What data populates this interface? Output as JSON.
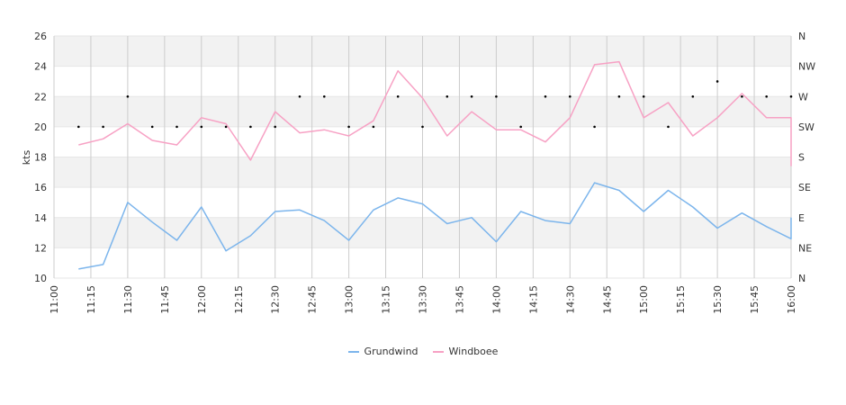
{
  "chart_data": {
    "type": "line",
    "ylabel": "kts",
    "ylim": [
      10,
      26
    ],
    "yticks": [
      "10",
      "12",
      "14",
      "16",
      "18",
      "20",
      "22",
      "24",
      "26"
    ],
    "y2ticks": [
      "N",
      "NE",
      "E",
      "SE",
      "S",
      "SW",
      "W",
      "NW",
      "N"
    ],
    "xticks": [
      "11:00",
      "11:15",
      "11:30",
      "11:45",
      "12:00",
      "12:15",
      "12:30",
      "12:45",
      "13:00",
      "13:15",
      "13:30",
      "13:45",
      "14:00",
      "14:15",
      "14:30",
      "14:45",
      "15:00",
      "15:15",
      "15:30",
      "15:45",
      "16:00"
    ],
    "x": [
      "11:10",
      "11:20",
      "11:30",
      "11:40",
      "11:50",
      "12:00",
      "12:10",
      "12:20",
      "12:30",
      "12:40",
      "12:50",
      "13:00",
      "13:10",
      "13:20",
      "13:30",
      "13:40",
      "13:50",
      "14:00",
      "14:10",
      "14:20",
      "14:30",
      "14:40",
      "14:50",
      "15:00",
      "15:10",
      "15:20",
      "15:30",
      "15:40",
      "15:50",
      "16:00"
    ],
    "series": [
      {
        "name": "Grundwind",
        "color": "#7cb5ec",
        "values": [
          10.6,
          10.9,
          15.0,
          13.7,
          12.5,
          14.7,
          11.8,
          12.8,
          14.4,
          14.5,
          13.8,
          12.5,
          14.5,
          15.3,
          14.9,
          13.6,
          14.0,
          12.4,
          14.4,
          13.8,
          13.6,
          16.3,
          15.8,
          14.4,
          15.8,
          14.7,
          13.3,
          14.3,
          13.4,
          12.6
        ]
      },
      {
        "name": "Windboee",
        "color": "#f7a1c4",
        "values": [
          18.8,
          19.2,
          20.2,
          19.1,
          18.8,
          20.6,
          20.2,
          17.8,
          21.0,
          19.6,
          19.8,
          19.4,
          20.4,
          23.7,
          21.9,
          19.4,
          21.0,
          19.8,
          19.8,
          19.0,
          20.6,
          24.1,
          24.3,
          20.6,
          21.6,
          19.4,
          20.6,
          22.2,
          20.6,
          20.6
        ]
      }
    ],
    "direction_degrees": [
      225,
      225,
      270,
      225,
      225,
      225,
      225,
      225,
      225,
      270,
      270,
      225,
      225,
      270,
      225,
      270,
      270,
      270,
      225,
      270,
      270,
      225,
      270,
      270,
      225,
      270,
      292.5,
      270,
      270,
      270
    ],
    "grid": true,
    "legend": "bottom-center"
  },
  "colors": {
    "band": "#f2f2f2",
    "grid": "#cccccc",
    "text": "#333333",
    "marker": "#000000"
  }
}
